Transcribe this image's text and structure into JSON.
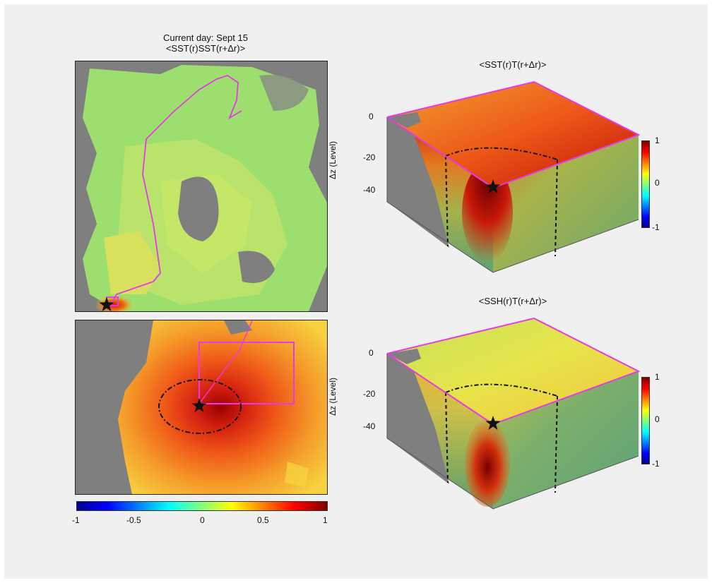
{
  "figure": {
    "day_label": "Current day: Sept  15",
    "title_map": "<SST(r)SST(r+Δr)>",
    "title_cube_top": "<SST(r)T(r+Δr)>",
    "title_cube_bottom": "<SSH(r)T(r+Δr)>",
    "cube_ylabel": "Δz (Level)"
  },
  "chart_data": [
    {
      "type": "heatmap",
      "title": "<SST(r)SST(r+Δr)>",
      "subtitle": "Current day: Sept  15",
      "panel": "map-overview",
      "colorbar": {
        "ticks": [
          "-1",
          "-0.5",
          "0",
          "0.5",
          "1"
        ],
        "range": [
          -1,
          1
        ],
        "colormap": "jet"
      },
      "background_land_color": "#7f7f7f",
      "dominant_value": 0.2,
      "markers": [
        "star",
        "path-line",
        "box"
      ]
    },
    {
      "type": "heatmap",
      "title": "",
      "panel": "map-zoom",
      "center_value": 1.0,
      "contour": "dash-dot ellipse",
      "markers": [
        "star",
        "box"
      ]
    },
    {
      "type": "heatmap",
      "title": "<SST(r)T(r+Δr)>",
      "panel": "cube-top",
      "ylabel": "Δz (Level)",
      "yticks": [
        "0",
        "-20",
        "-40"
      ],
      "colorbar": {
        "ticks": [
          "1",
          "0",
          "-1"
        ],
        "range": [
          -1,
          1
        ]
      },
      "surface_value": 0.7,
      "core_value": 1.0
    },
    {
      "type": "heatmap",
      "title": "<SSH(r)T(r+Δr)>",
      "panel": "cube-bottom",
      "ylabel": "Δz (Level)",
      "yticks": [
        "0",
        "-20",
        "-40"
      ],
      "colorbar": {
        "ticks": [
          "1",
          "0",
          "-1"
        ],
        "range": [
          -1,
          1
        ]
      },
      "surface_value": 0.3,
      "core_value": 1.0
    }
  ],
  "horizontal_colorbar": {
    "ticks": [
      "-1",
      "-0.5",
      "0",
      "0.5",
      "1"
    ]
  },
  "vertical_colorbar": {
    "ticks": [
      "1",
      "0",
      "-1"
    ]
  },
  "cube_ticks": [
    "0",
    "-20",
    "-40"
  ],
  "colors": {
    "land": "#7f7f7f",
    "highlight": "#e63ae6",
    "figure_bg": "#f0f0f0"
  }
}
